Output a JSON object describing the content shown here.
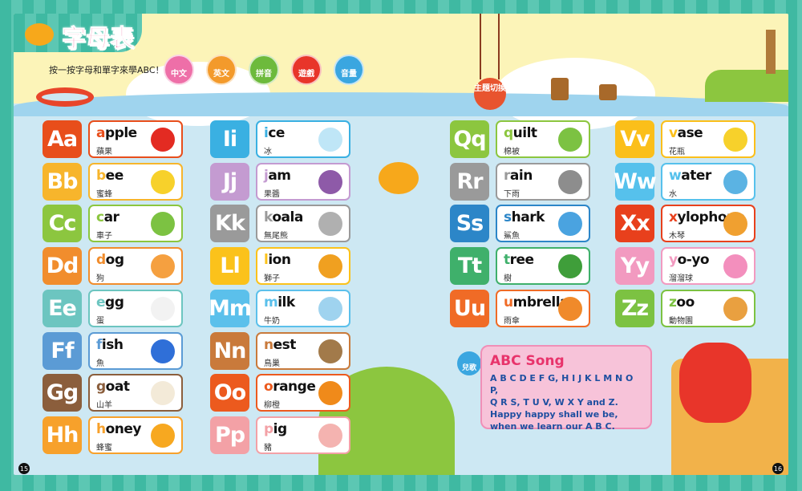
{
  "header": {
    "title": "字母表",
    "instruction": "按一按字母和單字來學ABC！"
  },
  "modes": [
    {
      "label": "中文",
      "color": "#ee6fa8"
    },
    {
      "label": "英文",
      "color": "#f39a2b"
    },
    {
      "label": "拼音",
      "color": "#6dba3c"
    },
    {
      "label": "遊戲",
      "color": "#e8352a"
    },
    {
      "label": "音量",
      "color": "#3aa6e0"
    }
  ],
  "theme_button": {
    "label": "主題切換"
  },
  "letters": [
    {
      "letter": "Aa",
      "first": "a",
      "rest": "pple",
      "zh": "蘋果",
      "color": "#e84e1b",
      "pic": "apple-icon",
      "picColor": "#e32b22"
    },
    {
      "letter": "Bb",
      "first": "b",
      "rest": "ee",
      "zh": "蜜蜂",
      "color": "#f7b52c",
      "pic": "bee-icon",
      "picColor": "#f7d12b"
    },
    {
      "letter": "Cc",
      "first": "c",
      "rest": "ar",
      "zh": "車子",
      "color": "#8cc63f",
      "pic": "car-icon",
      "picColor": "#7cc242"
    },
    {
      "letter": "Dd",
      "first": "d",
      "rest": "og",
      "zh": "狗",
      "color": "#f18d2d",
      "pic": "dog-icon",
      "picColor": "#f5a040"
    },
    {
      "letter": "Ee",
      "first": "e",
      "rest": "gg",
      "zh": "蛋",
      "color": "#6cc5c0",
      "pic": "egg-icon",
      "picColor": "#f2f2f2"
    },
    {
      "letter": "Ff",
      "first": "f",
      "rest": "ish",
      "zh": "魚",
      "color": "#5b9bd5",
      "pic": "fish-icon",
      "picColor": "#2f6fd8"
    },
    {
      "letter": "Gg",
      "first": "g",
      "rest": "oat",
      "zh": "山羊",
      "color": "#8b5e3c",
      "pic": "goat-icon",
      "picColor": "#f3ead8"
    },
    {
      "letter": "Hh",
      "first": "h",
      "rest": "oney",
      "zh": "蜂蜜",
      "color": "#f7a12b",
      "pic": "honey-icon",
      "picColor": "#f7a820"
    },
    {
      "letter": "Ii",
      "first": "i",
      "rest": "ce",
      "zh": "冰",
      "color": "#3ab0e2",
      "pic": "ice-icon",
      "picColor": "#bfe6f7"
    },
    {
      "letter": "Jj",
      "first": "j",
      "rest": "am",
      "zh": "果醬",
      "color": "#c49bd1",
      "pic": "jam-icon",
      "picColor": "#8e5aa8"
    },
    {
      "letter": "Kk",
      "first": "k",
      "rest": "oala",
      "zh": "無尾熊",
      "color": "#9a9a9a",
      "pic": "koala-icon",
      "picColor": "#b0b0b0"
    },
    {
      "letter": "Ll",
      "first": "l",
      "rest": "ion",
      "zh": "獅子",
      "color": "#fbc21b",
      "pic": "lion-icon",
      "picColor": "#f0a020"
    },
    {
      "letter": "Mm",
      "first": "m",
      "rest": "ilk",
      "zh": "牛奶",
      "color": "#5bc0eb",
      "pic": "milk-icon",
      "picColor": "#9fd3ef"
    },
    {
      "letter": "Nn",
      "first": "n",
      "rest": "est",
      "zh": "鳥巢",
      "color": "#c97a3b",
      "pic": "nest-icon",
      "picColor": "#a27a4a"
    },
    {
      "letter": "Oo",
      "first": "o",
      "rest": "range",
      "zh": "柳橙",
      "color": "#ec5a1e",
      "pic": "orange-icon",
      "picColor": "#f08a1a"
    },
    {
      "letter": "Pp",
      "first": "p",
      "rest": "ig",
      "zh": "豬",
      "color": "#f3a1a6",
      "pic": "pig-icon",
      "picColor": "#f4b3b0"
    },
    {
      "letter": "Qq",
      "first": "q",
      "rest": "uilt",
      "zh": "棉被",
      "color": "#8cc63f",
      "pic": "quilt-icon",
      "picColor": "#7cc242"
    },
    {
      "letter": "Rr",
      "first": "r",
      "rest": "ain",
      "zh": "下雨",
      "color": "#9a9a9a",
      "pic": "rain-cloud-icon",
      "picColor": "#8d8d8d"
    },
    {
      "letter": "Ss",
      "first": "s",
      "rest": "hark",
      "zh": "鯊魚",
      "color": "#2c86c8",
      "pic": "shark-icon",
      "picColor": "#4aa3e0"
    },
    {
      "letter": "Tt",
      "first": "t",
      "rest": "ree",
      "zh": "樹",
      "color": "#3fb06b",
      "pic": "tree-icon",
      "picColor": "#3f9e3a"
    },
    {
      "letter": "Uu",
      "first": "u",
      "rest": "mbrella",
      "zh": "雨傘",
      "color": "#f06b26",
      "pic": "umbrella-icon",
      "picColor": "#f08a2a"
    },
    {
      "letter": "Vv",
      "first": "v",
      "rest": "ase",
      "zh": "花瓶",
      "color": "#fbbf1a",
      "pic": "vase-icon",
      "picColor": "#f7d12b"
    },
    {
      "letter": "Ww",
      "first": "w",
      "rest": "ater",
      "zh": "水",
      "color": "#56c1ec",
      "pic": "water-drop-icon",
      "picColor": "#5bb3e3"
    },
    {
      "letter": "Xx",
      "first": "x",
      "rest": "ylophone",
      "zh": "木琴",
      "color": "#e8401c",
      "pic": "xylophone-icon",
      "picColor": "#f0a030"
    },
    {
      "letter": "Yy",
      "first": "y",
      "rest": "o-yo",
      "zh": "溜溜球",
      "color": "#f29ac0",
      "pic": "yoyo-icon",
      "picColor": "#f38fbd"
    },
    {
      "letter": "Zz",
      "first": "z",
      "rest": "oo",
      "zh": "動物園",
      "color": "#7cc242",
      "pic": "zoo-icon",
      "picColor": "#e9a040"
    }
  ],
  "song": {
    "icon_label": "兒歌",
    "title": "ABC Song",
    "lines": [
      "A B C D E F G, H I J K L M N O P,",
      "Q R S, T U V, W X Y and Z.",
      "Happy happy shall we be,",
      "when we learn our A B C."
    ]
  },
  "page_numbers": {
    "left": "15",
    "right": "16"
  }
}
